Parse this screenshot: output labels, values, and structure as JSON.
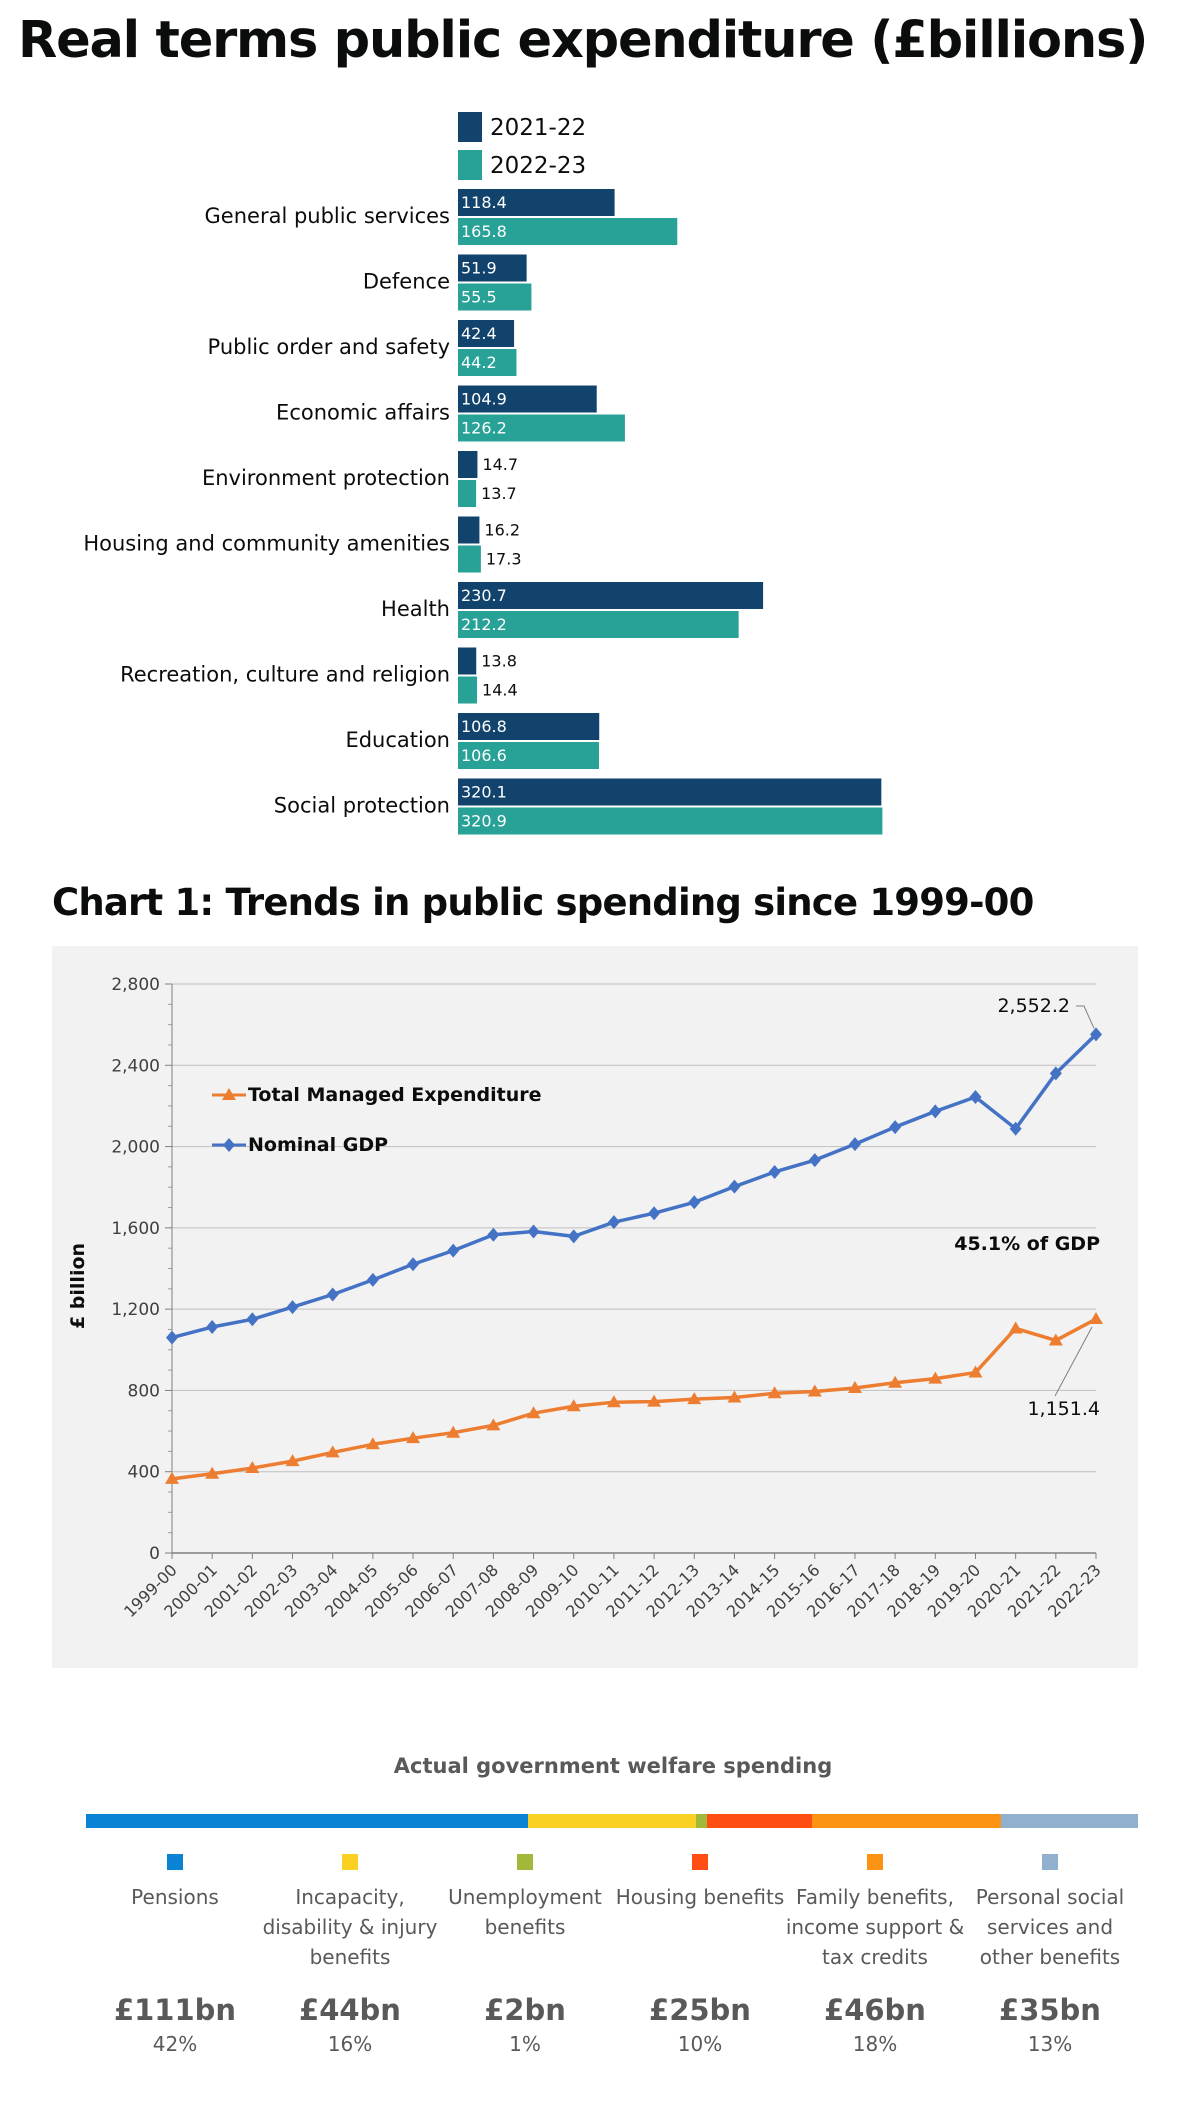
{
  "page_title": "Real terms public expenditure (£billions)",
  "chart1_title": "Chart 1: Trends in public spending since 1999-00",
  "colors": {
    "series_2021": "#12436d",
    "series_2022": "#28a197",
    "gdp": "#4472c4",
    "tme": "#ed7d31",
    "plot_bg": "#f2f2f2"
  },
  "chart_data": [
    {
      "type": "bar",
      "orientation": "horizontal",
      "title": "Real terms public expenditure (£billions)",
      "categories": [
        "General public services",
        "Defence",
        "Public order and safety",
        "Economic affairs",
        "Environment protection",
        "Housing and community amenities",
        "Health",
        "Recreation, culture and religion",
        "Education",
        "Social protection"
      ],
      "series": [
        {
          "name": "2021-22",
          "values": [
            118.4,
            51.9,
            42.4,
            104.9,
            14.7,
            16.2,
            230.7,
            13.8,
            106.8,
            320.1
          ],
          "labels": [
            "118.4",
            "51.9",
            "42.4",
            "104.9",
            "14.7",
            "16.2",
            "230.7",
            "13.8",
            "106.8",
            "320.1"
          ]
        },
        {
          "name": "2022-23",
          "values": [
            165.8,
            55.5,
            44.2,
            126.2,
            13.7,
            17.3,
            212.2,
            14.4,
            106.6,
            320.9
          ],
          "labels": [
            "165.8",
            "55.5",
            "44.2",
            "126.2",
            "13.7",
            "17.3",
            "212.2",
            "14.4",
            "106.6",
            "320.9"
          ]
        }
      ],
      "legend_position": "top",
      "axis_visible": false
    },
    {
      "type": "line",
      "title": "Chart 1: Trends in public spending since 1999-00",
      "x": [
        "1999-00",
        "2000-01",
        "2001-02",
        "2002-03",
        "2003-04",
        "2004-05",
        "2005-06",
        "2006-07",
        "2007-08",
        "2008-09",
        "2009-10",
        "2010-11",
        "2011-12",
        "2012-13",
        "2013-14",
        "2014-15",
        "2015-16",
        "2016-17",
        "2017-18",
        "2018-19",
        "2019-20",
        "2020-21",
        "2021-22",
        "2022-23"
      ],
      "ylabel": "£ billion",
      "ylim": [
        0,
        2800
      ],
      "yticks": [
        "0",
        "400",
        "800",
        "1,200",
        "1,600",
        "2,000",
        "2,400",
        "2,800"
      ],
      "grid": true,
      "legend_position": "top-left",
      "series": [
        {
          "name": "Total Managed Expenditure",
          "marker": "triangle",
          "values": [
            365,
            390,
            418,
            452,
            495,
            535,
            565,
            592,
            628,
            688,
            722,
            742,
            745,
            757,
            765,
            786,
            795,
            812,
            838,
            858,
            888,
            1105,
            1046,
            1151.4
          ]
        },
        {
          "name": "Nominal GDP",
          "marker": "diamond",
          "values": [
            1060,
            1112,
            1150,
            1210,
            1272,
            1344,
            1421,
            1488,
            1566,
            1582,
            1558,
            1628,
            1672,
            1726,
            1803,
            1875,
            1933,
            2012,
            2096,
            2173,
            2244,
            2088,
            2360,
            2552.2
          ]
        }
      ],
      "annotations": [
        {
          "text": "2,552.2",
          "series": "Nominal GDP",
          "x": "2022-23"
        },
        {
          "text": "1,151.4",
          "series": "Total Managed Expenditure",
          "x": "2022-23"
        },
        {
          "text": "45.1% of GDP"
        }
      ]
    }
  ],
  "welfare": {
    "title": "Actual government welfare spending",
    "items": [
      {
        "label": "Pensions",
        "amount": "£111bn",
        "pct": "42%",
        "share": 42,
        "color": "#0b83d4"
      },
      {
        "label": "Incapacity, disability & injury benefits",
        "amount": "£44bn",
        "pct": "16%",
        "share": 16,
        "color": "#fad123"
      },
      {
        "label": "Unemployment benefits",
        "amount": "£2bn",
        "pct": "1%",
        "share": 1,
        "color": "#a1b83a"
      },
      {
        "label": "Housing benefits",
        "amount": "£25bn",
        "pct": "10%",
        "share": 10,
        "color": "#ff4e13"
      },
      {
        "label": "Family benefits, income support & tax credits",
        "amount": "£46bn",
        "pct": "18%",
        "share": 18,
        "color": "#fd9313"
      },
      {
        "label": "Personal social services and other benefits",
        "amount": "£35bn",
        "pct": "13%",
        "share": 13,
        "color": "#91b0cd"
      }
    ]
  }
}
